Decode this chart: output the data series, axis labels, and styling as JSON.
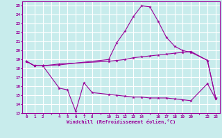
{
  "xlabel": "Windchill (Refroidissement éolien,°C)",
  "bg_color": "#c8ecec",
  "grid_color": "#ffffff",
  "line_color": "#990099",
  "xlim": [
    -0.5,
    23.5
  ],
  "ylim": [
    13,
    25.5
  ],
  "yticks": [
    13,
    14,
    15,
    16,
    17,
    18,
    19,
    20,
    21,
    22,
    23,
    24,
    25
  ],
  "xtick_labels": [
    "0",
    "1",
    "2",
    "",
    "4",
    "5",
    "6",
    "7",
    "8",
    "",
    "10",
    "11",
    "12",
    "13",
    "14",
    "",
    "16",
    "17",
    "18",
    "19",
    "20",
    "",
    "22",
    "23"
  ],
  "series1_x": [
    0,
    1,
    2,
    4,
    10,
    11,
    12,
    13,
    14,
    15,
    16,
    17,
    18,
    19,
    20,
    22,
    23
  ],
  "series1_y": [
    18.8,
    18.3,
    18.3,
    18.4,
    19.0,
    20.9,
    22.2,
    23.8,
    25.0,
    24.9,
    23.3,
    21.5,
    20.5,
    20.0,
    19.8,
    18.9,
    14.7
  ],
  "series2_x": [
    0,
    1,
    2,
    4,
    10,
    11,
    12,
    13,
    14,
    15,
    16,
    17,
    18,
    19,
    20,
    22,
    23
  ],
  "series2_y": [
    18.8,
    18.3,
    18.3,
    18.5,
    18.8,
    18.9,
    19.0,
    19.2,
    19.3,
    19.4,
    19.5,
    19.6,
    19.7,
    19.8,
    19.9,
    18.9,
    14.7
  ],
  "series3_x": [
    0,
    1,
    2,
    4,
    5,
    6,
    7,
    8,
    10,
    11,
    12,
    13,
    14,
    15,
    16,
    17,
    18,
    19,
    20,
    22,
    23
  ],
  "series3_y": [
    18.8,
    18.3,
    18.3,
    15.8,
    15.6,
    13.2,
    16.4,
    15.3,
    15.1,
    15.0,
    14.9,
    14.8,
    14.8,
    14.7,
    14.7,
    14.7,
    14.6,
    14.5,
    14.4,
    16.3,
    14.6
  ]
}
